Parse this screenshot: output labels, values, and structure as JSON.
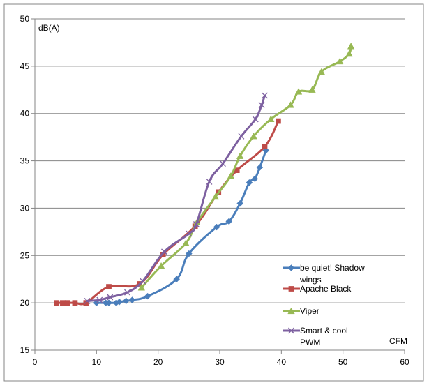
{
  "chart_data": {
    "type": "line",
    "title": "",
    "xlabel": "CFM",
    "ylabel": "dB(A)",
    "xlim": [
      0,
      60
    ],
    "ylim": [
      15,
      50
    ],
    "x_ticks": [
      "0",
      "10",
      "20",
      "30",
      "40",
      "50",
      "60"
    ],
    "y_ticks": [
      "15",
      "20",
      "25",
      "30",
      "35",
      "40",
      "45",
      "50"
    ],
    "grid": "horizontal",
    "legend_position": "right",
    "series": [
      {
        "name": "be quiet! Shadow wings",
        "legend_lines": [
          "be quiet! Shadow",
          "wings"
        ],
        "color": "#4a7ebb",
        "marker": "diamond",
        "points": [
          [
            10,
            20
          ],
          [
            11.5,
            20
          ],
          [
            12,
            20
          ],
          [
            13.2,
            20
          ],
          [
            13.7,
            20.1
          ],
          [
            14.8,
            20.2
          ],
          [
            15.8,
            20.3
          ],
          [
            18.3,
            20.7
          ],
          [
            23,
            22.5
          ],
          [
            25,
            25.2
          ],
          [
            29.5,
            28
          ],
          [
            31.5,
            28.6
          ],
          [
            33.3,
            30.5
          ],
          [
            34.8,
            32.7
          ],
          [
            35.7,
            33.1
          ],
          [
            36.5,
            34.3
          ],
          [
            37.5,
            36.1
          ]
        ]
      },
      {
        "name": "Apache Black",
        "legend_lines": [
          "Apache Black"
        ],
        "color": "#be4b48",
        "marker": "square",
        "points": [
          [
            3.5,
            20
          ],
          [
            4.5,
            20
          ],
          [
            5.3,
            20
          ],
          [
            6.5,
            20
          ],
          [
            8.3,
            20
          ],
          [
            12,
            21.7
          ],
          [
            17,
            22
          ],
          [
            20.8,
            25.1
          ],
          [
            26,
            28.1
          ],
          [
            29.8,
            31.7
          ],
          [
            32.8,
            34
          ],
          [
            37.3,
            36.5
          ],
          [
            39.5,
            39.2
          ]
        ]
      },
      {
        "name": "Viper",
        "legend_lines": [
          "Viper"
        ],
        "color": "#98b954",
        "marker": "triangle",
        "points": [
          [
            17.3,
            21.6
          ],
          [
            20.5,
            23.9
          ],
          [
            24.5,
            26.3
          ],
          [
            26.3,
            28.5
          ],
          [
            29.3,
            31.2
          ],
          [
            31.8,
            33.4
          ],
          [
            33.3,
            35.5
          ],
          [
            35.5,
            37.6
          ],
          [
            38.3,
            39.4
          ],
          [
            41.5,
            40.9
          ],
          [
            42.8,
            42.3
          ],
          [
            45,
            42.5
          ],
          [
            46.5,
            44.4
          ],
          [
            49.5,
            45.5
          ],
          [
            51,
            46.3
          ],
          [
            51.3,
            47.1
          ]
        ]
      },
      {
        "name": "Smart & cool PWM",
        "legend_lines": [
          "Smart & cool",
          "PWM"
        ],
        "color": "#7d60a0",
        "marker": "x",
        "points": [
          [
            8.5,
            20.2
          ],
          [
            10.5,
            20.3
          ],
          [
            12.2,
            20.6
          ],
          [
            15,
            21.1
          ],
          [
            17.5,
            22.3
          ],
          [
            21,
            25.4
          ],
          [
            25,
            27.3
          ],
          [
            26.2,
            28.3
          ],
          [
            28.3,
            32.8
          ],
          [
            30.5,
            34.7
          ],
          [
            33.5,
            37.6
          ],
          [
            35.8,
            39.4
          ],
          [
            36.8,
            40.9
          ],
          [
            37.3,
            41.9
          ]
        ]
      }
    ]
  }
}
